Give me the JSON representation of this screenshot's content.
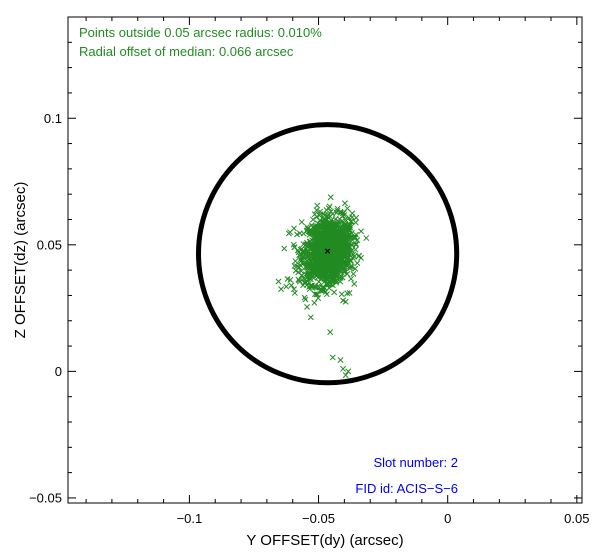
{
  "chart_data": {
    "type": "scatter",
    "title": "",
    "xlabel": "Y OFFSET(dy) (arcsec)",
    "ylabel": "Z OFFSET(dz) (arcsec)",
    "xlim": [
      -0.147,
      0.052
    ],
    "ylim": [
      -0.052,
      0.14
    ],
    "xticks": [
      -0.1,
      -0.05,
      0,
      0.05
    ],
    "xtick_labels": [
      "−0.1",
      "−0.05",
      "0",
      "0.05"
    ],
    "yticks": [
      -0.05,
      0,
      0.05,
      0.1
    ],
    "ytick_labels": [
      "−0.05",
      "0",
      "0.05",
      "0.1"
    ],
    "grid": false,
    "marker": "x",
    "colors": {
      "points": "#228B22",
      "annotation_top": "#228B22",
      "annotation_bottom": "#0000EE",
      "circle": "#000000",
      "median": "#000000"
    },
    "circle": {
      "center": [
        -0.0465,
        0.0465
      ],
      "radius": 0.05
    },
    "median": [
      -0.0465,
      0.0475
    ],
    "cluster": {
      "center": [
        -0.0465,
        0.0475
      ],
      "spread": [
        0.0045,
        0.0065
      ],
      "approx_count": 1400
    },
    "outliers": [
      [
        -0.0645,
        0.0325
      ],
      [
        -0.0625,
        0.0335
      ],
      [
        -0.0605,
        0.034
      ],
      [
        -0.0595,
        0.0325
      ],
      [
        -0.0575,
        0.036
      ],
      [
        -0.0555,
        0.035
      ],
      [
        -0.062,
        0.0365
      ],
      [
        -0.0655,
        0.0355
      ],
      [
        -0.0395,
        0.0275
      ],
      [
        -0.041,
        0.0305
      ],
      [
        -0.038,
        0.031
      ],
      [
        -0.0405,
        0.028
      ],
      [
        -0.0455,
        0.0155
      ],
      [
        -0.0445,
        0.0055
      ],
      [
        -0.0415,
        0.0045
      ],
      [
        -0.0405,
        0.001
      ],
      [
        -0.0395,
        -0.0015
      ],
      [
        -0.0385,
        0.0
      ],
      [
        -0.0505,
        0.0655
      ],
      [
        -0.0565,
        0.059
      ],
      [
        -0.0595,
        0.0565
      ],
      [
        -0.0615,
        0.0545
      ],
      [
        -0.0345,
        0.0455
      ],
      [
        -0.0365,
        0.0385
      ]
    ],
    "annotations_top": [
      "Points outside 0.05 arcsec radius: 0.010%",
      "Radial offset of median: 0.066 arcsec"
    ],
    "annotations_bottom": [
      "Slot number: 2",
      "FID id: ACIS−S−6"
    ]
  }
}
